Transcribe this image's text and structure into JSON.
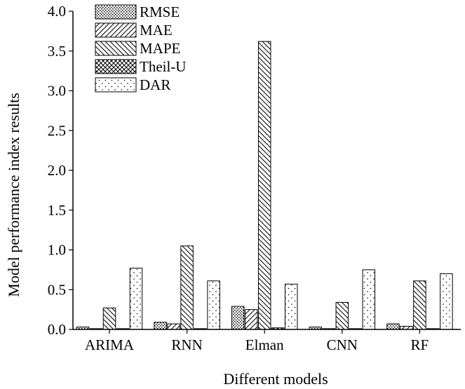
{
  "chart_data": {
    "type": "bar",
    "xlabel": "Different models",
    "ylabel": "Model performance index results",
    "ylim": [
      0,
      4.0
    ],
    "yticks": [
      "0.0",
      "0.5",
      "1.0",
      "1.5",
      "2.0",
      "2.5",
      "3.0",
      "3.5",
      "4.0"
    ],
    "categories": [
      "ARIMA",
      "RNN",
      "Elman",
      "CNN",
      "RF"
    ],
    "legend_position": "top-left",
    "grid": false,
    "series": [
      {
        "name": "RMSE",
        "pattern": "dots-dense",
        "values": [
          0.03,
          0.09,
          0.29,
          0.03,
          0.07
        ]
      },
      {
        "name": "MAE",
        "pattern": "hatch-fwd",
        "values": [
          0.01,
          0.07,
          0.25,
          0.01,
          0.04
        ]
      },
      {
        "name": "MAPE",
        "pattern": "hatch-back",
        "values": [
          0.27,
          1.05,
          3.62,
          0.34,
          0.61
        ]
      },
      {
        "name": "Theil-U",
        "pattern": "crosshatch",
        "values": [
          0.01,
          0.01,
          0.02,
          0.01,
          0.01
        ]
      },
      {
        "name": "DAR",
        "pattern": "dots-sparse",
        "values": [
          0.77,
          0.61,
          0.57,
          0.75,
          0.7
        ]
      }
    ]
  }
}
